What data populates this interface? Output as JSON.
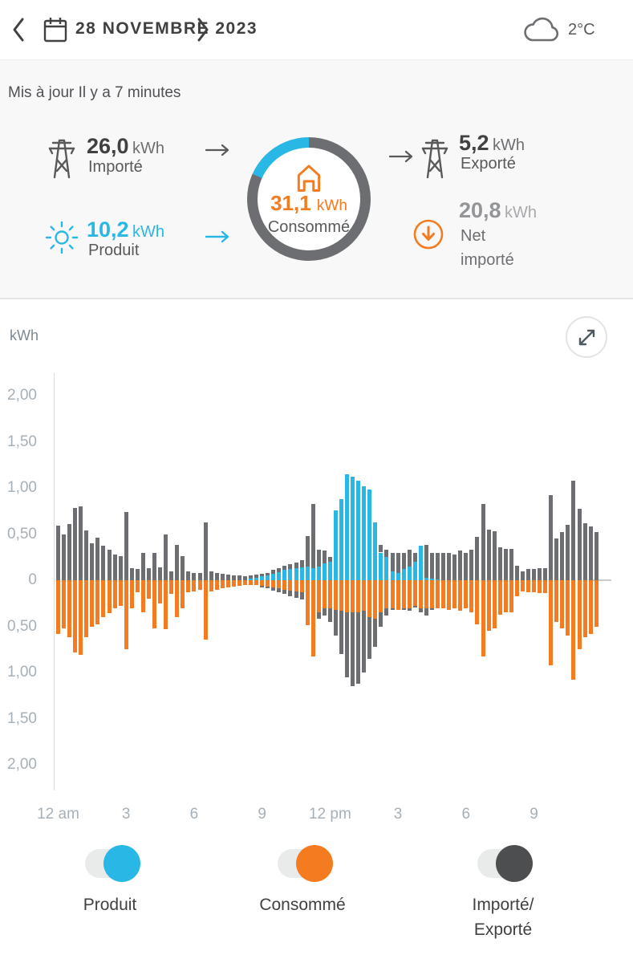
{
  "header": {
    "date_label": "28 NOVEMBRE 2023",
    "temperature": "2°C"
  },
  "status": {
    "updated_text": "Mis à jour Il y a 7 minutes"
  },
  "summary": {
    "imported": {
      "value": "26,0",
      "unit": "kWh",
      "label": "Importé"
    },
    "produced": {
      "value": "10,2",
      "unit": "kWh",
      "label": "Produit"
    },
    "consumed": {
      "value": "31,1",
      "unit": "kWh",
      "label": "Consommé"
    },
    "exported": {
      "value": "5,2",
      "unit": "kWh",
      "label": "Exporté"
    },
    "net_imported": {
      "value": "20,8",
      "unit": "kWh",
      "label": "Net\nimporté"
    }
  },
  "chart": {
    "unit_label": "kWh"
  },
  "chart_data": {
    "type": "bar",
    "stacked": true,
    "x_unit": "15-minute intervals over 24 hours",
    "x_tick_labels": [
      "12 am",
      "3",
      "6",
      "9",
      "12 pm",
      "3",
      "6",
      "9"
    ],
    "x_tick_slots": [
      0,
      12,
      24,
      36,
      48,
      60,
      72,
      84
    ],
    "y_tick_values": [
      2,
      1.5,
      1,
      0.5,
      0,
      -0.5,
      -1,
      -1.5,
      -2
    ],
    "y_tick_labels": [
      "2,00",
      "1,50",
      "1,00",
      "0,50",
      "0",
      "0,50",
      "1,00",
      "1,50",
      "2,00"
    ],
    "ylim": [
      -2.3,
      2.3
    ],
    "ylabel": "kWh",
    "legend_position": "bottom",
    "grid": false,
    "series": [
      {
        "name": "Produit",
        "color": "#29b7e5",
        "direction": "positive",
        "values": [
          0,
          0,
          0,
          0,
          0,
          0,
          0,
          0,
          0,
          0,
          0,
          0,
          0,
          0,
          0,
          0,
          0,
          0,
          0,
          0,
          0,
          0,
          0,
          0,
          0,
          0,
          0,
          0,
          0,
          0,
          0,
          0,
          0,
          0,
          0.02,
          0.03,
          0.04,
          0.05,
          0.07,
          0.09,
          0.11,
          0.12,
          0.13,
          0.14,
          0.15,
          0.13,
          0.15,
          0.18,
          0.2,
          0.76,
          0.88,
          1.15,
          1.12,
          1.08,
          1.02,
          0.98,
          0.63,
          0.3,
          0.25,
          0.1,
          0.08,
          0.12,
          0.15,
          0.2,
          0.37,
          0.03,
          0.02,
          0.01,
          0,
          0,
          0,
          0,
          0,
          0,
          0,
          0,
          0,
          0,
          0,
          0,
          0,
          0,
          0,
          0,
          0,
          0,
          0,
          0,
          0,
          0,
          0,
          0,
          0,
          0,
          0,
          0
        ]
      },
      {
        "name": "Importé",
        "color": "#6d6e71",
        "direction": "positive",
        "values": [
          0.59,
          0.5,
          0.61,
          0.78,
          0.8,
          0.54,
          0.4,
          0.46,
          0.37,
          0.33,
          0.28,
          0.26,
          0.74,
          0.13,
          0.12,
          0.3,
          0.13,
          0.3,
          0.14,
          0.5,
          0.1,
          0.38,
          0.26,
          0.1,
          0.08,
          0.08,
          0.63,
          0.1,
          0.08,
          0.07,
          0.06,
          0.05,
          0.05,
          0.04,
          0.03,
          0.03,
          0.03,
          0.03,
          0.04,
          0.04,
          0.05,
          0.05,
          0.06,
          0.08,
          0.33,
          0.7,
          0.18,
          0.14,
          0.05,
          0,
          0,
          0,
          0,
          0,
          0,
          0,
          0,
          0.08,
          0.08,
          0.2,
          0.22,
          0.18,
          0.18,
          0.1,
          0,
          0.35,
          0.28,
          0.29,
          0.3,
          0.3,
          0.28,
          0.32,
          0.3,
          0.33,
          0.47,
          0.83,
          0.55,
          0.53,
          0.36,
          0.34,
          0.34,
          0.16,
          0.1,
          0.12,
          0.12,
          0.13,
          0.13,
          0.92,
          0.45,
          0.52,
          0.6,
          1.08,
          0.77,
          0.62,
          0.58,
          0.52
        ]
      },
      {
        "name": "Consommé",
        "color": "#f47b20",
        "direction": "negative",
        "values": [
          0.58,
          0.52,
          0.62,
          0.78,
          0.81,
          0.62,
          0.5,
          0.48,
          0.4,
          0.36,
          0.3,
          0.28,
          0.75,
          0.3,
          0.13,
          0.35,
          0.2,
          0.52,
          0.25,
          0.53,
          0.15,
          0.4,
          0.3,
          0.13,
          0.12,
          0.1,
          0.64,
          0.12,
          0.1,
          0.09,
          0.08,
          0.07,
          0.06,
          0.05,
          0.05,
          0.05,
          0.06,
          0.07,
          0.08,
          0.09,
          0.1,
          0.11,
          0.12,
          0.13,
          0.49,
          0.83,
          0.35,
          0.3,
          0.3,
          0.32,
          0.33,
          0.35,
          0.35,
          0.35,
          0.33,
          0.4,
          0.42,
          0.35,
          0.3,
          0.3,
          0.32,
          0.3,
          0.3,
          0.28,
          0.3,
          0.3,
          0.3,
          0.3,
          0.3,
          0.32,
          0.3,
          0.33,
          0.3,
          0.35,
          0.48,
          0.83,
          0.55,
          0.52,
          0.37,
          0.35,
          0.35,
          0.17,
          0.12,
          0.13,
          0.13,
          0.14,
          0.14,
          0.92,
          0.45,
          0.52,
          0.6,
          1.08,
          0.75,
          0.62,
          0.58,
          0.5
        ]
      },
      {
        "name": "Exporté",
        "color": "#6d6e71",
        "direction": "negative",
        "values": [
          0,
          0,
          0,
          0,
          0,
          0,
          0,
          0,
          0,
          0,
          0,
          0,
          0,
          0,
          0,
          0,
          0,
          0,
          0,
          0,
          0,
          0,
          0,
          0,
          0,
          0,
          0,
          0,
          0,
          0,
          0,
          0,
          0,
          0,
          0,
          0,
          0.02,
          0.02,
          0.03,
          0.04,
          0.05,
          0.06,
          0.07,
          0.08,
          0,
          0,
          0.07,
          0.08,
          0.15,
          0.28,
          0.47,
          0.7,
          0.8,
          0.77,
          0.67,
          0.45,
          0.3,
          0.15,
          0.08,
          0.02,
          0,
          0.02,
          0.03,
          0.02,
          0.05,
          0.08,
          0.02,
          0,
          0,
          0,
          0,
          0,
          0,
          0,
          0,
          0,
          0,
          0,
          0,
          0,
          0,
          0,
          0,
          0,
          0,
          0,
          0,
          0,
          0,
          0,
          0,
          0,
          0,
          0,
          0,
          0
        ]
      }
    ]
  },
  "toggles": [
    {
      "label": "Produit",
      "color": "#29b7e5",
      "state": "on"
    },
    {
      "label": "Consommé",
      "color": "#f47b20",
      "state": "on"
    },
    {
      "label": "Importé/\nExporté",
      "color": "#4d4e50",
      "state": "on"
    }
  ],
  "colors": {
    "produced_accent": "#29b7e5",
    "consumed_accent": "#f47b20",
    "import_export_gray": "#6d6e71",
    "ring_track": "#6d6e71"
  }
}
